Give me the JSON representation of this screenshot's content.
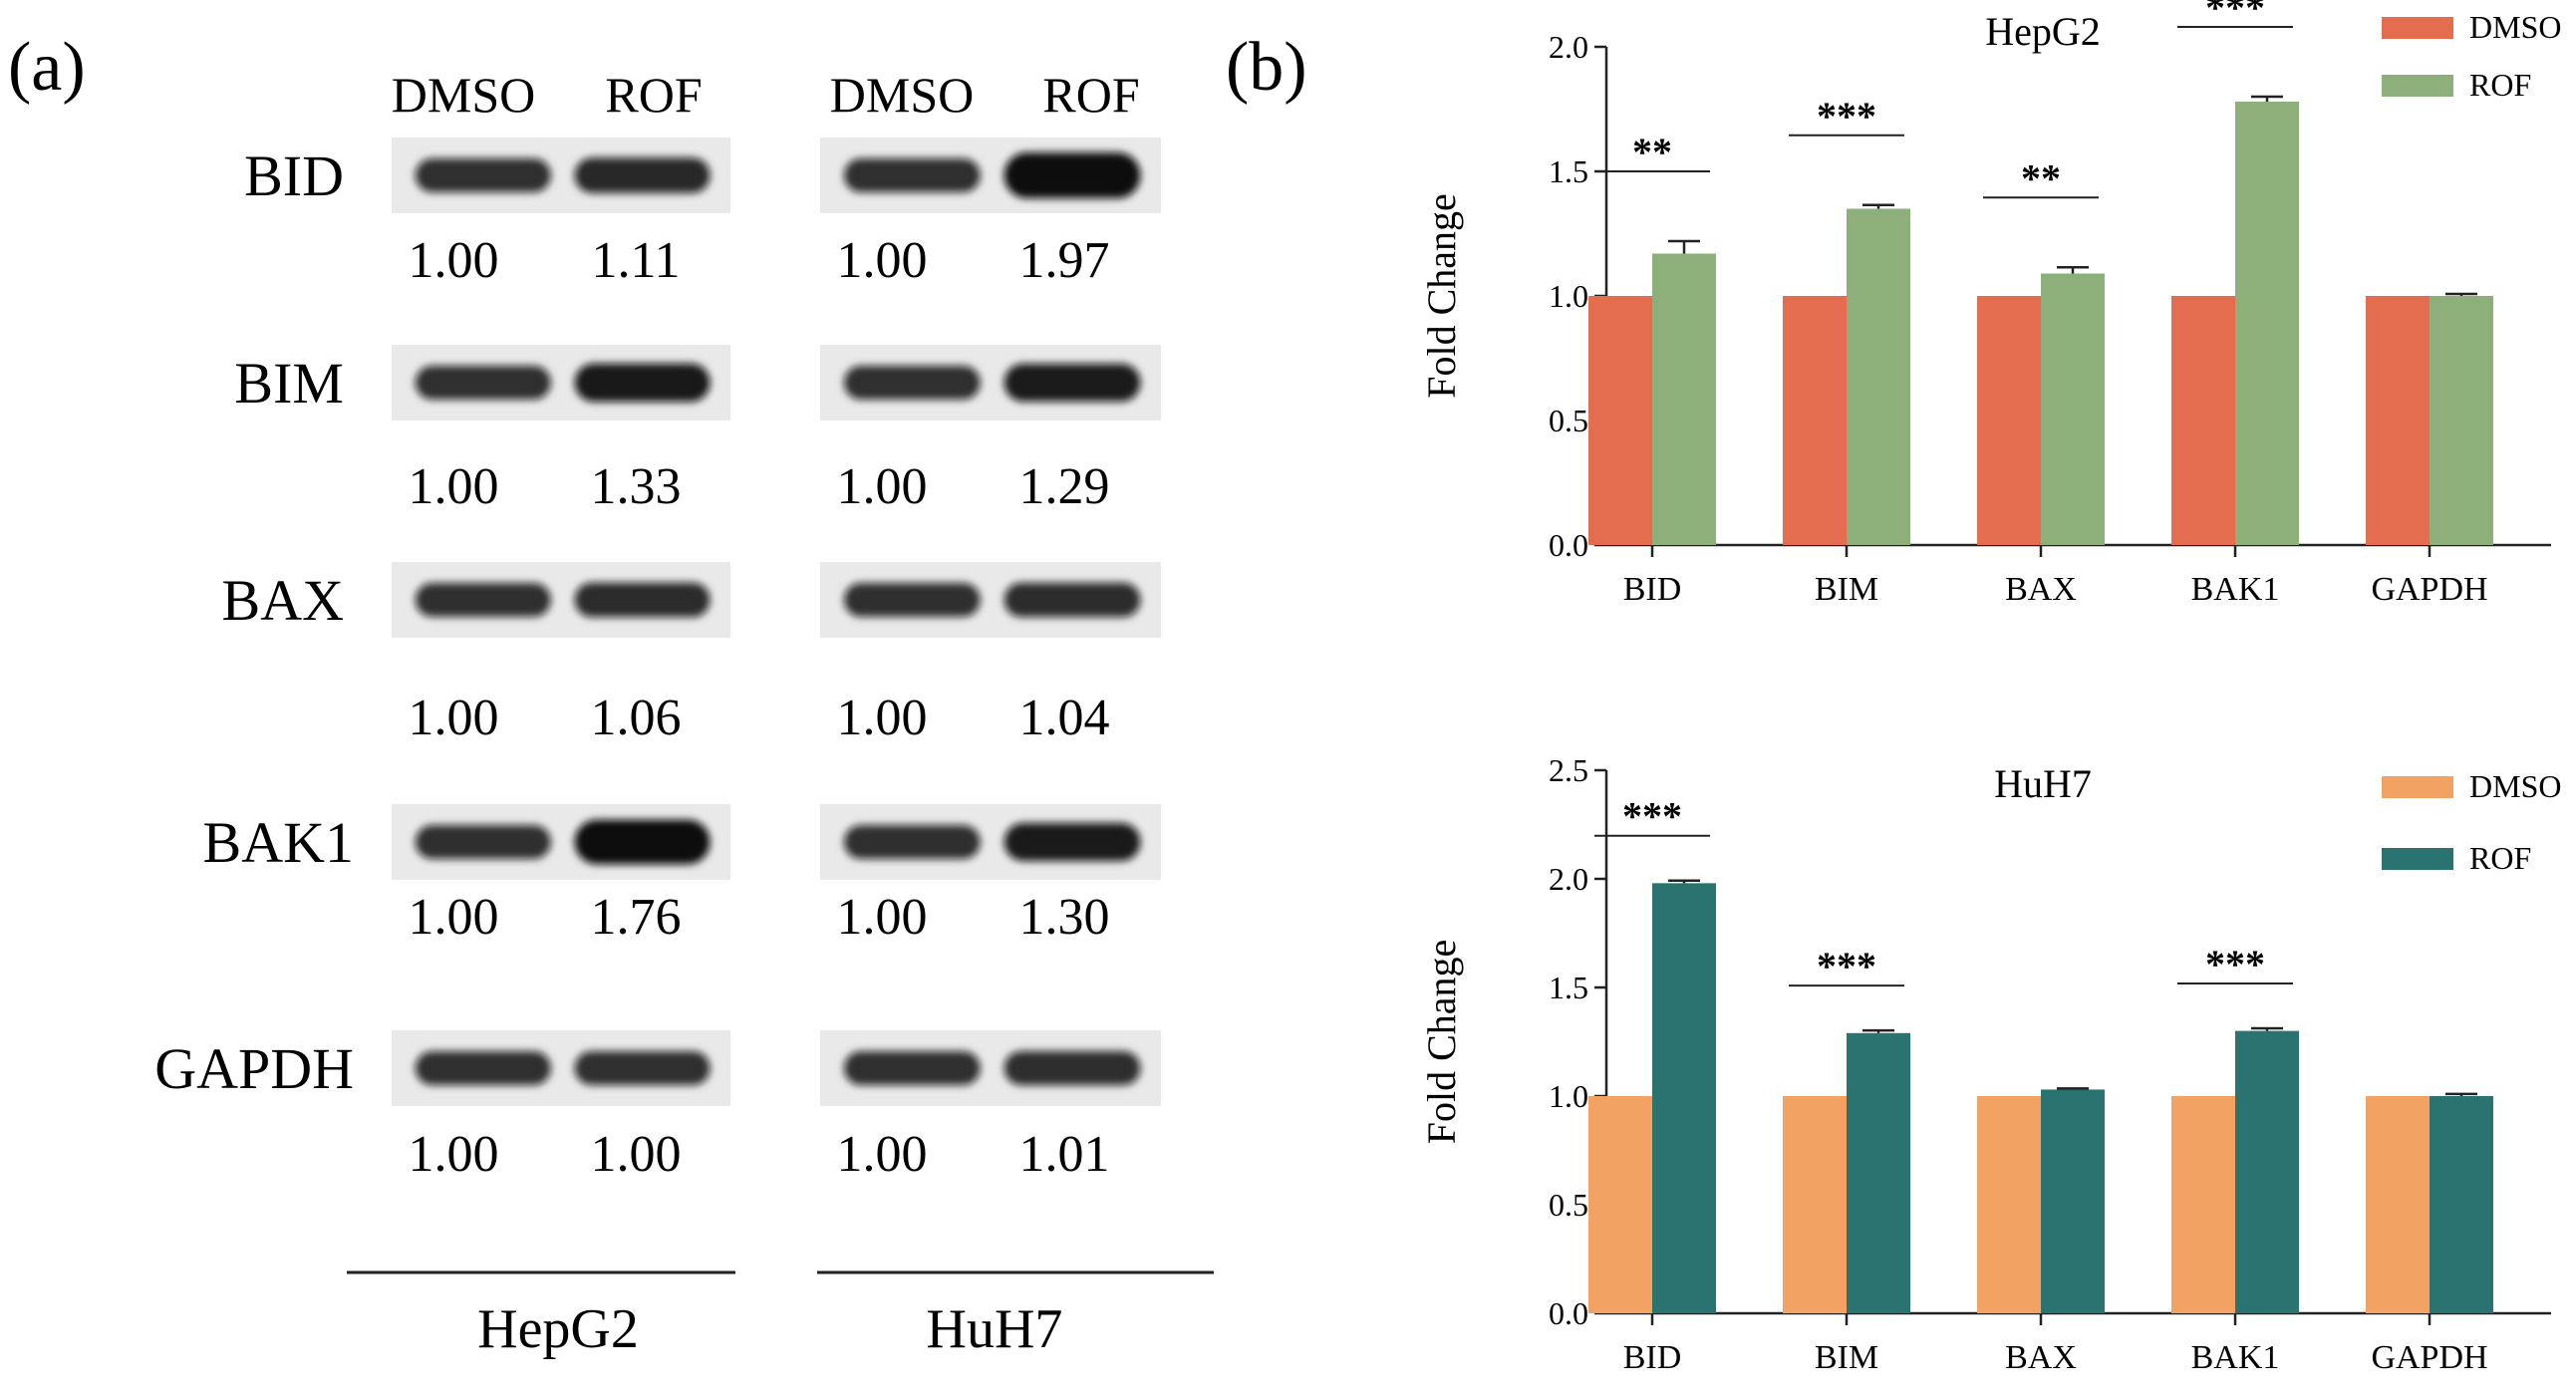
{
  "panel_a": {
    "label": "(a)",
    "conditions": [
      "DMSO",
      "ROF",
      "DMSO",
      "ROF"
    ],
    "cell_lines": [
      "HepG2",
      "HuH7"
    ],
    "blots": [
      {
        "protein": "BID",
        "hepg2": [
          "1.00",
          "1.11"
        ],
        "huh7": [
          "1.00",
          "1.97"
        ]
      },
      {
        "protein": "BIM",
        "hepg2": [
          "1.00",
          "1.33"
        ],
        "huh7": [
          "1.00",
          "1.29"
        ]
      },
      {
        "protein": "BAX",
        "hepg2": [
          "1.00",
          "1.06"
        ],
        "huh7": [
          "1.00",
          "1.04"
        ]
      },
      {
        "protein": "BAK1",
        "hepg2": [
          "1.00",
          "1.76"
        ],
        "huh7": [
          "1.00",
          "1.30"
        ]
      },
      {
        "protein": "GAPDH",
        "hepg2": [
          "1.00",
          "1.00"
        ],
        "huh7": [
          "1.00",
          "1.01"
        ]
      }
    ]
  },
  "panel_b": {
    "label": "(b)"
  },
  "chart_data": [
    {
      "type": "bar",
      "title": "HepG2",
      "xlabel": "",
      "ylabel": "Fold Change",
      "categories": [
        "BID",
        "BIM",
        "BAX",
        "BAK1",
        "GAPDH"
      ],
      "ylim": [
        0,
        2.0
      ],
      "yticks": [
        "0.0",
        "0.5",
        "1.0",
        "1.5",
        "2.0"
      ],
      "series": [
        {
          "name": "DMSO",
          "color": "#E46C4F",
          "values": [
            1.0,
            1.0,
            1.0,
            1.0,
            1.0
          ],
          "errors": [
            0,
            0,
            0,
            0,
            0
          ]
        },
        {
          "name": "ROF",
          "color": "#8DB07A",
          "values": [
            1.17,
            1.35,
            1.09,
            1.78,
            1.0
          ],
          "errors": [
            0.05,
            0.015,
            0.025,
            0.02,
            0.008
          ]
        }
      ],
      "significance": [
        "**",
        "***",
        "**",
        "***",
        ""
      ],
      "legend": "top-right",
      "grid": false
    },
    {
      "type": "bar",
      "title": "HuH7",
      "xlabel": "",
      "ylabel": "Fold Change",
      "categories": [
        "BID",
        "BIM",
        "BAX",
        "BAK1",
        "GAPDH"
      ],
      "ylim": [
        0,
        2.5
      ],
      "yticks": [
        "0.0",
        "0.5",
        "1.0",
        "1.5",
        "2.0",
        "2.5"
      ],
      "series": [
        {
          "name": "DMSO",
          "color": "#F2A262",
          "values": [
            1.0,
            1.0,
            1.0,
            1.0,
            1.0
          ],
          "errors": [
            0,
            0,
            0,
            0,
            0
          ]
        },
        {
          "name": "ROF",
          "color": "#2B7370",
          "values": [
            1.98,
            1.29,
            1.03,
            1.3,
            1.0
          ],
          "errors": [
            0.012,
            0.012,
            0.005,
            0.012,
            0.01
          ]
        }
      ],
      "significance": [
        "***",
        "***",
        "",
        "***",
        ""
      ],
      "legend": "top-right",
      "grid": false
    }
  ]
}
